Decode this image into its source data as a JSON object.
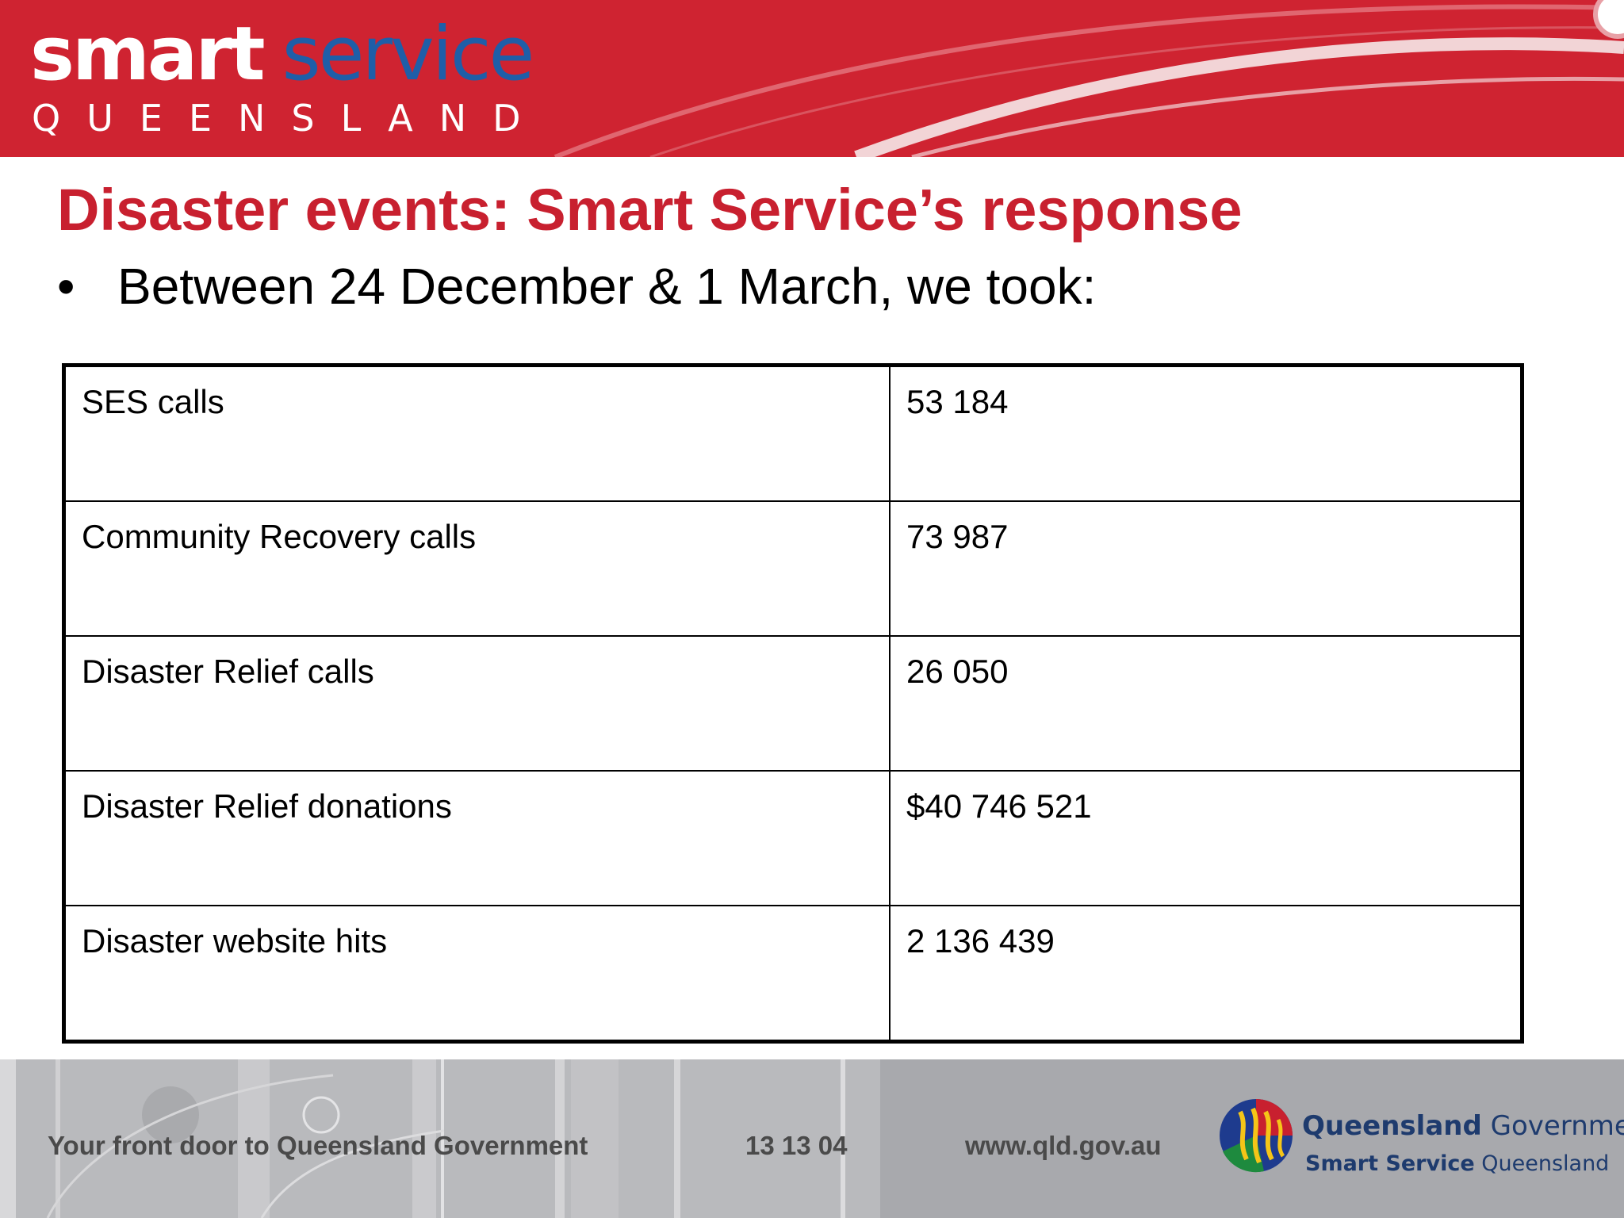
{
  "header": {
    "logo_word1": "smart",
    "logo_word2": "service",
    "logo_region": "QUEENSLAND"
  },
  "slide": {
    "title": "Disaster events:  Smart Service’s response",
    "bullet_marker": "•",
    "bullet_text": "Between 24 December & 1 March, we took:"
  },
  "table": {
    "rows": [
      {
        "label": "SES calls",
        "value": "53 184"
      },
      {
        "label": "Community Recovery calls",
        "value": "73 987"
      },
      {
        "label": "Disaster Relief calls",
        "value": "26 050"
      },
      {
        "label": "Disaster Relief donations",
        "value": "$40 746 521"
      },
      {
        "label": "Disaster website hits",
        "value": "2 136 439"
      }
    ]
  },
  "footer": {
    "tagline": "Your front door to Queensland Government",
    "phone": "13 13 04",
    "website": "www.qld.gov.au",
    "gov_name_bold": "Queensland",
    "gov_name_rest": " Government",
    "gov_sub_bold": "Smart Service",
    "gov_sub_rest": " Queensland"
  },
  "colors": {
    "banner_red": "#cf2331",
    "title_red": "#c8202f",
    "logo_blue": "#1f5ea8",
    "footer_grey": "#a8a9ad"
  }
}
